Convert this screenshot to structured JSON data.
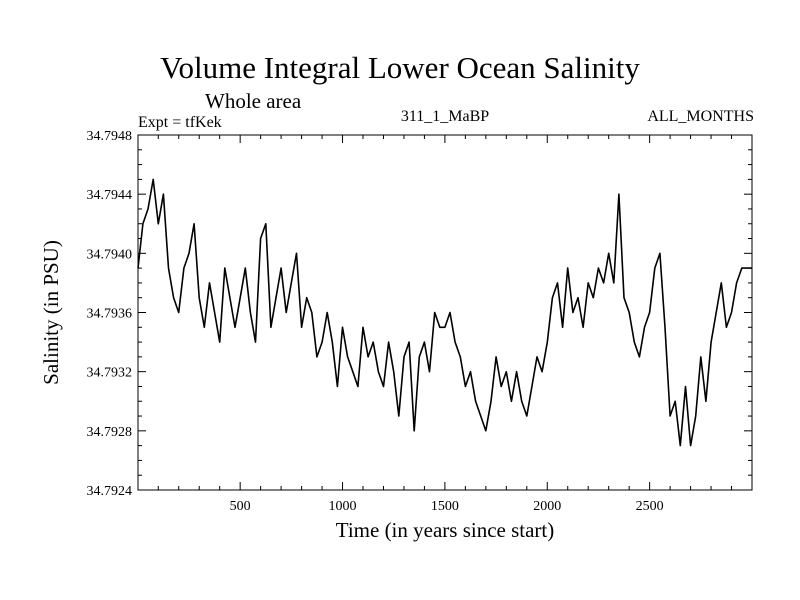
{
  "header": {
    "title": "Volume Integral Lower Ocean Salinity",
    "subtitle": "Whole area",
    "experiment": "Expt = tfKek",
    "run_id": "311_1_MaBP",
    "months": "ALL_MONTHS"
  },
  "chart_data": {
    "type": "line",
    "title": "Volume Integral Lower Ocean Salinity",
    "subtitle": "Whole area",
    "xlabel": "Time (in years since start)",
    "ylabel": "Salinity (in PSU)",
    "xlim": [
      1,
      3000
    ],
    "ylim": [
      34.7924,
      34.7948
    ],
    "xticks": [
      500,
      1000,
      1500,
      2000,
      2500
    ],
    "yticks": [
      34.7924,
      34.7928,
      34.7932,
      34.7936,
      34.794,
      34.7944,
      34.7948
    ],
    "ytick_labels": [
      "34.7924",
      "34.7928",
      "34.7932",
      "34.7936",
      "34.7940",
      "34.7944",
      "34.7948"
    ],
    "grid": false,
    "series": [
      {
        "color": "#000000",
        "x": [
          1,
          25,
          50,
          75,
          100,
          125,
          150,
          175,
          200,
          225,
          250,
          275,
          300,
          325,
          350,
          375,
          400,
          425,
          450,
          475,
          500,
          525,
          550,
          575,
          600,
          625,
          650,
          675,
          700,
          725,
          750,
          775,
          800,
          825,
          850,
          875,
          900,
          925,
          950,
          975,
          1000,
          1025,
          1050,
          1075,
          1100,
          1125,
          1150,
          1175,
          1200,
          1225,
          1250,
          1275,
          1300,
          1325,
          1350,
          1375,
          1400,
          1425,
          1450,
          1475,
          1500,
          1525,
          1550,
          1575,
          1600,
          1625,
          1650,
          1675,
          1700,
          1725,
          1750,
          1775,
          1800,
          1825,
          1850,
          1875,
          1900,
          1925,
          1950,
          1975,
          2000,
          2025,
          2050,
          2075,
          2100,
          2125,
          2150,
          2175,
          2200,
          2225,
          2250,
          2275,
          2300,
          2325,
          2350,
          2375,
          2400,
          2425,
          2450,
          2475,
          2500,
          2525,
          2550,
          2575,
          2600,
          2625,
          2650,
          2675,
          2700,
          2725,
          2750,
          2775,
          2800,
          2825,
          2850,
          2875,
          2900,
          2925,
          2950,
          2975,
          3000
        ],
        "y": [
          34.7939,
          34.7942,
          34.7943,
          34.7945,
          34.7942,
          34.7944,
          34.7939,
          34.7937,
          34.7936,
          34.7939,
          34.794,
          34.7942,
          34.7937,
          34.7935,
          34.7938,
          34.7936,
          34.7934,
          34.7939,
          34.7937,
          34.7935,
          34.7937,
          34.7939,
          34.7936,
          34.7934,
          34.7941,
          34.7942,
          34.7935,
          34.7937,
          34.7939,
          34.7936,
          34.7938,
          34.794,
          34.7935,
          34.7937,
          34.7936,
          34.7933,
          34.7934,
          34.7936,
          34.7934,
          34.7931,
          34.7935,
          34.7933,
          34.7932,
          34.7931,
          34.7935,
          34.7933,
          34.7934,
          34.7932,
          34.7931,
          34.7934,
          34.7932,
          34.7929,
          34.7933,
          34.7934,
          34.7928,
          34.7933,
          34.7934,
          34.7932,
          34.7936,
          34.7935,
          34.7935,
          34.7936,
          34.7934,
          34.7933,
          34.7931,
          34.7932,
          34.793,
          34.7929,
          34.7928,
          34.793,
          34.7933,
          34.7931,
          34.7932,
          34.793,
          34.7932,
          34.793,
          34.7929,
          34.7931,
          34.7933,
          34.7932,
          34.7934,
          34.7937,
          34.7938,
          34.7935,
          34.7939,
          34.7936,
          34.7937,
          34.7935,
          34.7938,
          34.7937,
          34.7939,
          34.7938,
          34.794,
          34.7938,
          34.7944,
          34.7937,
          34.7936,
          34.7934,
          34.7933,
          34.7935,
          34.7936,
          34.7939,
          34.794,
          34.7935,
          34.7929,
          34.793,
          34.7927,
          34.7931,
          34.7927,
          34.7929,
          34.7933,
          34.793,
          34.7934,
          34.7936,
          34.7938,
          34.7935,
          34.7936,
          34.7938,
          34.7939,
          34.7939,
          34.7939
        ]
      }
    ]
  }
}
